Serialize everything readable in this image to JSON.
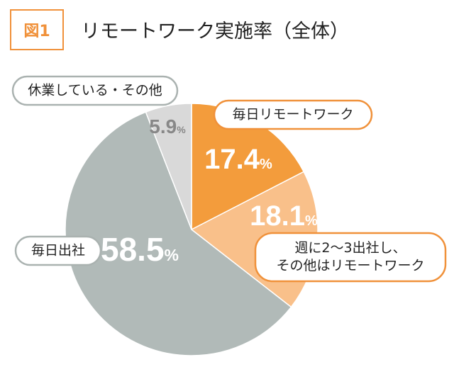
{
  "figure": {
    "label": "図1",
    "title": "リモートワーク実施率（全体）"
  },
  "chart_data": {
    "type": "pie",
    "title": "リモートワーク実施率（全体）",
    "unit": "%",
    "slices": [
      {
        "label": "毎日リモートワーク",
        "value": 17.4,
        "display": "17.4",
        "color": "#f39c3c"
      },
      {
        "label": "週に2〜3出社し、\nその他はリモートワーク",
        "value": 18.1,
        "display": "18.1",
        "color": "#f9c08a"
      },
      {
        "label": "毎日出社",
        "value": 58.5,
        "display": "58.5",
        "color": "#b1bab8"
      },
      {
        "label": "休業している・その他",
        "value": 5.9,
        "display": "5.9",
        "color": "#d9d9d9"
      }
    ],
    "colors": {
      "callout_orange_border": "#f0913a",
      "callout_gray_border": "#aab2b0",
      "value_text_light": "#ffffff",
      "value_text_dark": "#888888"
    }
  }
}
